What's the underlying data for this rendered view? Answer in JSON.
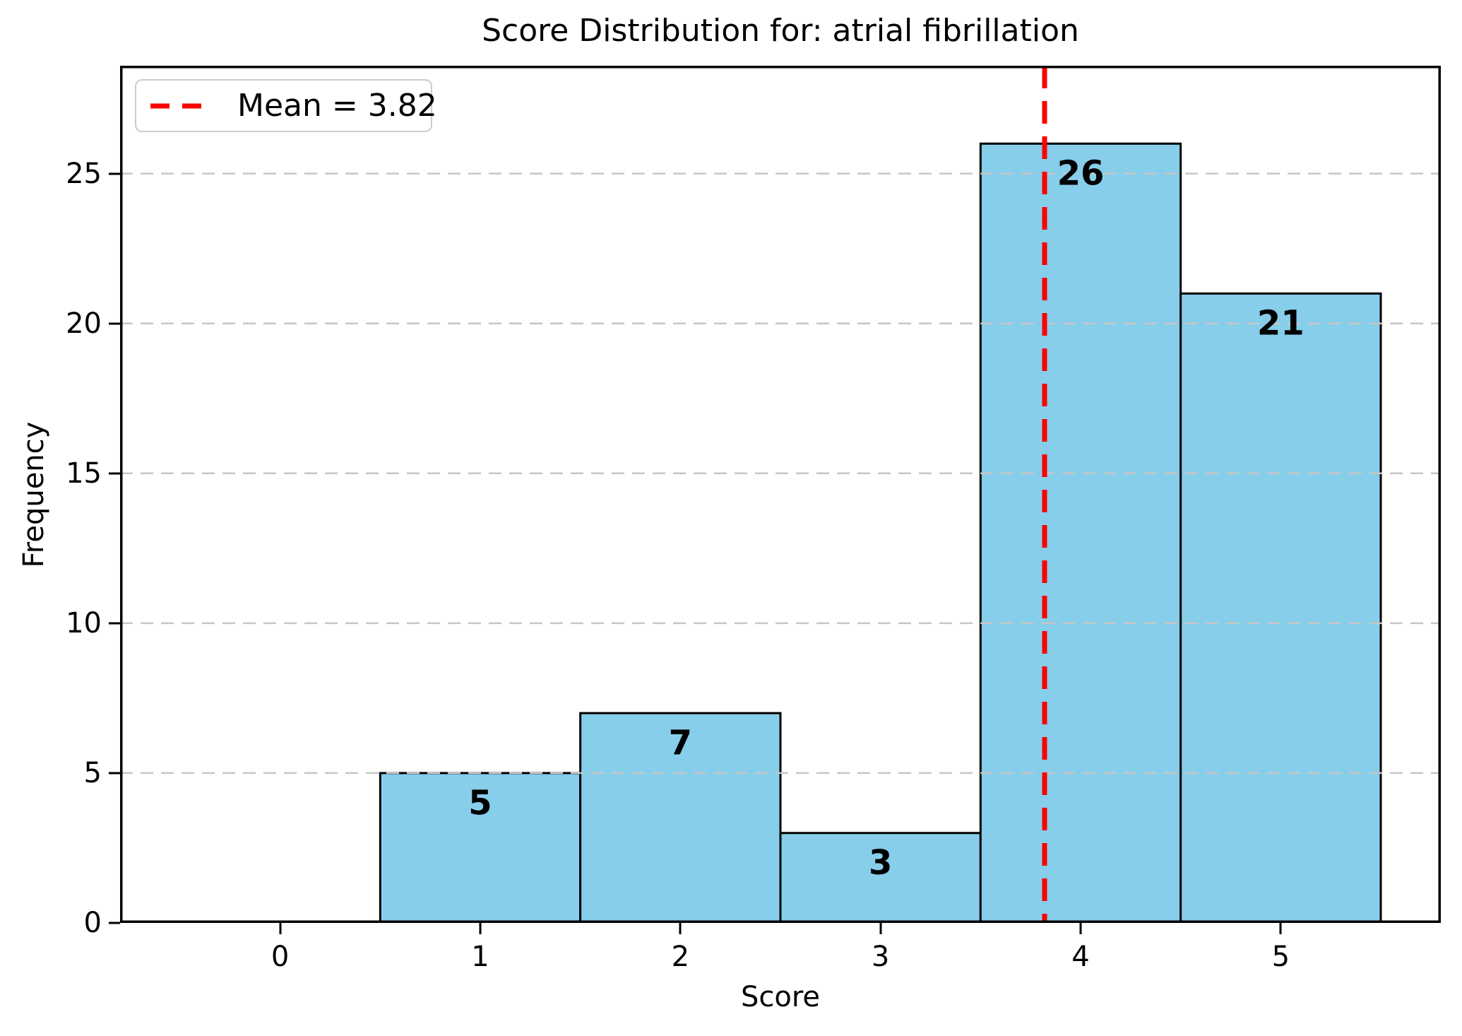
{
  "chart_data": {
    "type": "bar",
    "title": "Score Distribution for: atrial fibrillation",
    "xlabel": "Score",
    "ylabel": "Frequency",
    "categories": [
      0,
      1,
      2,
      3,
      4,
      5
    ],
    "values": [
      0,
      5,
      7,
      3,
      26,
      21
    ],
    "bar_value_labels": [
      "",
      "5",
      "7",
      "3",
      "26",
      "21"
    ],
    "mean": 3.82,
    "legend": {
      "label": "Mean = 3.82",
      "position": "upper-left",
      "line_style": "dashed"
    },
    "x_ticks": [
      "0",
      "1",
      "2",
      "3",
      "4",
      "5"
    ],
    "x_tick_values": [
      0,
      1,
      2,
      3,
      4,
      5
    ],
    "y_ticks": [
      "0",
      "5",
      "10",
      "15",
      "20",
      "25"
    ],
    "y_tick_values": [
      0,
      5,
      10,
      15,
      20,
      25
    ],
    "xlim": [
      -0.8,
      5.8
    ],
    "ylim": [
      0,
      28.6
    ],
    "bar_width": 1,
    "grid": "horizontal-dashed",
    "grid_above_bars": true,
    "colors": {
      "bar_fill": "#87CEEB",
      "bar_edge": "#000000",
      "mean_line": "#FF0000",
      "grid_line": "#C6C6C6",
      "legend_border": "#CCCCCC",
      "axis": "#000000",
      "text": "#000000",
      "background": "#FFFFFF"
    }
  }
}
